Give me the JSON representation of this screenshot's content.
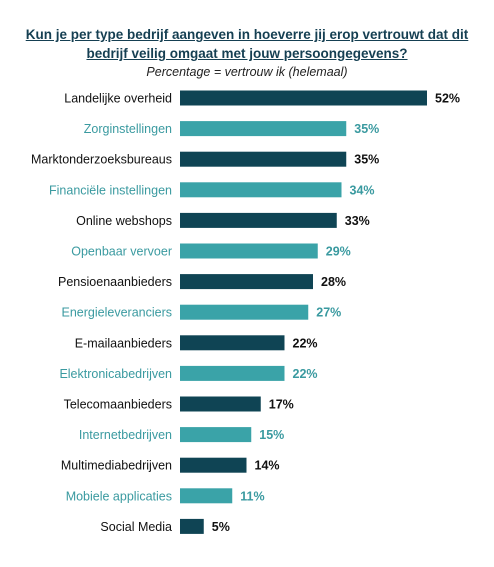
{
  "title_lines": [
    "Kun je per type bedrijf aangeven in hoeverre jij erop vertrouwt dat dit",
    "bedrijf veilig omgaat met jouw persoongegevens?"
  ],
  "subtitle": "Percentage = vertrouw ik (helemaal)",
  "colors": {
    "dark": "#0f4454",
    "light": "#3aa3a8",
    "label_dark": "#111111",
    "label_light": "#3a9aa0",
    "value": "#111111"
  },
  "chart_data": {
    "type": "bar",
    "orientation": "horizontal",
    "title": "Kun je per type bedrijf aangeven in hoeverre jij erop vertrouwt dat dit bedrijf veilig omgaat met jouw persoongegevens?",
    "subtitle": "Percentage = vertrouw ik (helemaal)",
    "xlabel": "",
    "ylabel": "",
    "xlim": [
      0,
      52
    ],
    "grid": false,
    "categories": [
      "Landelijke overheid",
      "Zorginstellingen",
      "Marktonderzoeksbureaus",
      "Financiële instellingen",
      "Online webshops",
      "Openbaar vervoer",
      "Pensioenaanbieders",
      "Energieleveranciers",
      "E-mailaanbieders",
      "Elektronicabedrijven",
      "Telecomaanbieders",
      "Internetbedrijven",
      "Multimediabedrijven",
      "Mobiele applicaties",
      "Social Media"
    ],
    "values": [
      52,
      35,
      35,
      34,
      33,
      29,
      28,
      27,
      22,
      22,
      17,
      15,
      14,
      11,
      5
    ],
    "value_labels": [
      "52%",
      "35%",
      "35%",
      "34%",
      "33%",
      "29%",
      "28%",
      "27%",
      "22%",
      "22%",
      "17%",
      "15%",
      "14%",
      "11%",
      "5%"
    ]
  }
}
